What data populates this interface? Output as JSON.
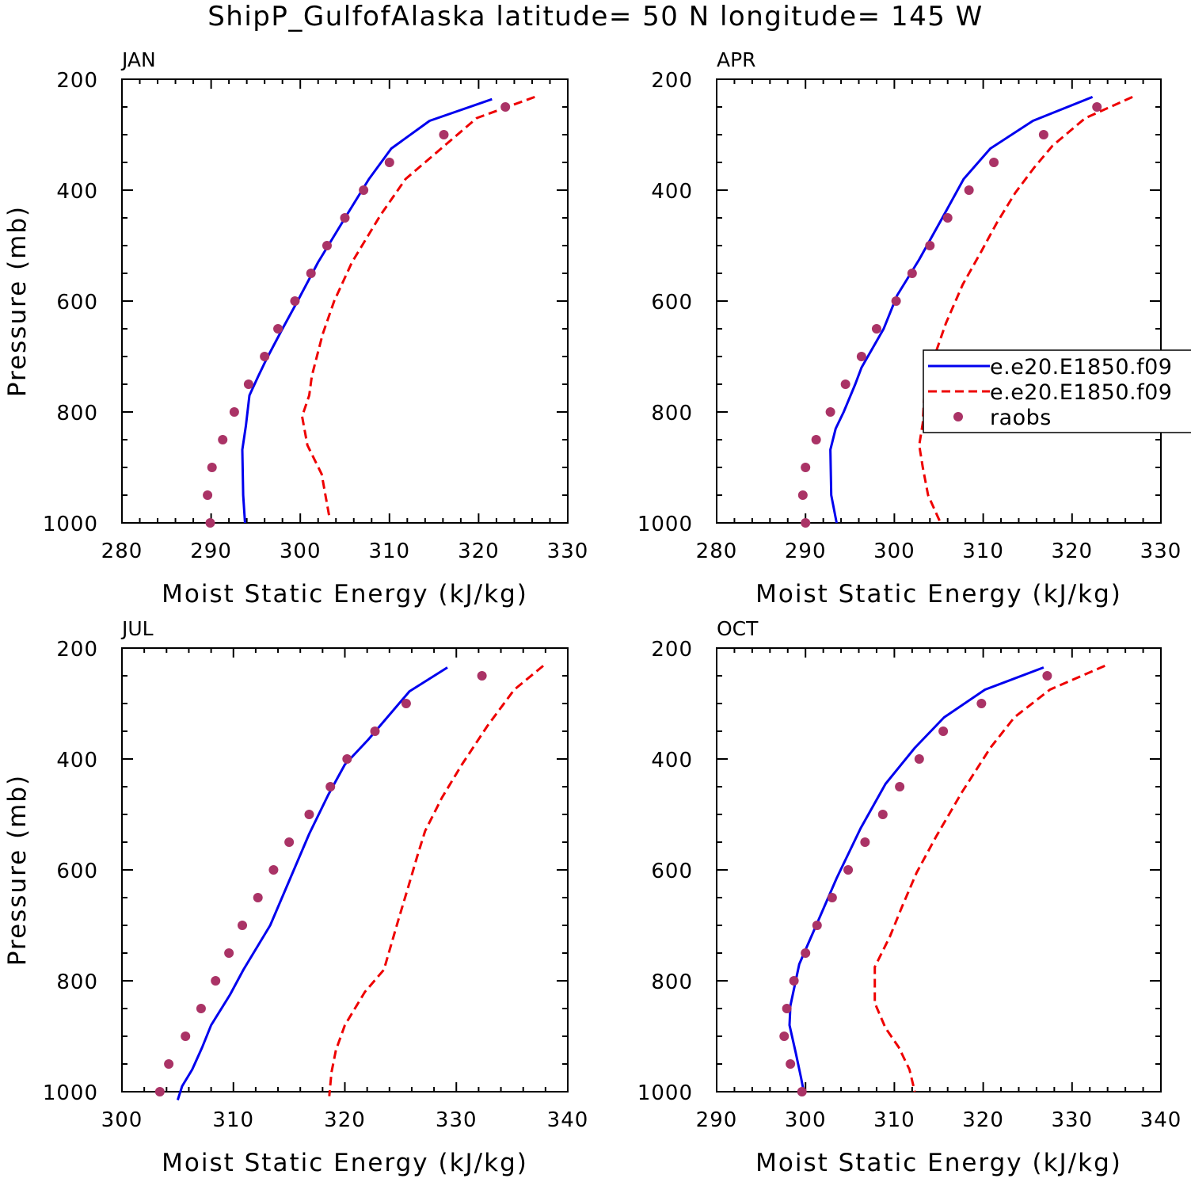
{
  "title": "ShipP_GulfofAlaska  latitude= 50 N longitude= 145 W",
  "colors": {
    "model1": "#0000ee",
    "model2": "#ee0000",
    "raobs": "#aa3366"
  },
  "legend": {
    "items": [
      {
        "label": "e.e20.E1850.f09",
        "style": "solid",
        "color": "#0000ee"
      },
      {
        "label": "e.e20.E1850.f09",
        "style": "dashed",
        "color": "#ee0000"
      },
      {
        "label": "raobs",
        "style": "marker",
        "color": "#aa3366"
      }
    ],
    "placement": "right, attached to APR panel, clipped by page edge"
  },
  "chart_data": [
    {
      "type": "line",
      "panel": "JAN",
      "xlabel": "Moist Static Energy (kJ/kg)",
      "ylabel": "Pressure (mb)",
      "xlim": [
        280,
        330
      ],
      "ylim": [
        1000,
        200
      ],
      "xticks": [
        280,
        290,
        300,
        310,
        320,
        330
      ],
      "yticks": [
        200,
        400,
        600,
        800,
        1000
      ],
      "yscale": "linear",
      "series": [
        {
          "name": "e.e20.E1850.f09",
          "style": "solid",
          "color": "#0000ee",
          "points": [
            [
              321.5,
              236
            ],
            [
              314.5,
              275
            ],
            [
              310.2,
              325
            ],
            [
              307.7,
              380
            ],
            [
              305.4,
              440
            ],
            [
              302.0,
              530
            ],
            [
              299.7,
              600
            ],
            [
              298.0,
              650
            ],
            [
              296.2,
              705
            ],
            [
              295.3,
              735
            ],
            [
              294.3,
              770
            ],
            [
              293.9,
              825
            ],
            [
              293.5,
              868
            ],
            [
              293.6,
              950
            ],
            [
              293.8,
              1000
            ]
          ]
        },
        {
          "name": "e.e20.E1850.f09",
          "style": "dashed",
          "color": "#ee0000",
          "points": [
            [
              326.3,
              232
            ],
            [
              319.8,
              270
            ],
            [
              315.8,
              325
            ],
            [
              311.8,
              380
            ],
            [
              309.0,
              445
            ],
            [
              305.8,
              530
            ],
            [
              303.8,
              600
            ],
            [
              302.5,
              660
            ],
            [
              301.3,
              735
            ],
            [
              301.0,
              770
            ],
            [
              300.2,
              808
            ],
            [
              300.8,
              860
            ],
            [
              302.4,
              912
            ],
            [
              302.8,
              948
            ],
            [
              303.3,
              993
            ]
          ]
        },
        {
          "name": "raobs",
          "style": "marker",
          "color": "#aa3366",
          "points": [
            [
              323.0,
              250
            ],
            [
              316.1,
              300
            ],
            [
              310.0,
              350
            ],
            [
              307.1,
              400
            ],
            [
              305.0,
              450
            ],
            [
              303.0,
              500
            ],
            [
              301.2,
              550
            ],
            [
              299.4,
              600
            ],
            [
              297.5,
              650
            ],
            [
              296.0,
              700
            ],
            [
              294.2,
              750
            ],
            [
              292.6,
              800
            ],
            [
              291.3,
              850
            ],
            [
              290.1,
              900
            ],
            [
              289.6,
              950
            ],
            [
              289.9,
              1000
            ]
          ]
        }
      ]
    },
    {
      "type": "line",
      "panel": "APR",
      "xlabel": "Moist Static Energy (kJ/kg)",
      "ylabel": "",
      "xlim": [
        280,
        330
      ],
      "ylim": [
        1000,
        200
      ],
      "xticks": [
        280,
        290,
        300,
        310,
        320,
        330
      ],
      "yticks": [
        200,
        400,
        600,
        800,
        1000
      ],
      "yscale": "linear",
      "series": [
        {
          "name": "e.e20.E1850.f09",
          "style": "solid",
          "color": "#0000ee",
          "points": [
            [
              322.3,
              232
            ],
            [
              315.6,
              275
            ],
            [
              310.8,
              325
            ],
            [
              307.8,
              380
            ],
            [
              305.4,
              450
            ],
            [
              302.8,
              525
            ],
            [
              300.3,
              590
            ],
            [
              298.8,
              650
            ],
            [
              296.3,
              720
            ],
            [
              295.6,
              750
            ],
            [
              294.3,
              800
            ],
            [
              293.4,
              830
            ],
            [
              292.8,
              868
            ],
            [
              292.9,
              950
            ],
            [
              293.5,
              1000
            ]
          ]
        },
        {
          "name": "e.e20.E1850.f09",
          "style": "dashed",
          "color": "#ee0000",
          "points": [
            [
              326.8,
              232
            ],
            [
              321.5,
              270
            ],
            [
              317.8,
              320
            ],
            [
              315.7,
              360
            ],
            [
              313.6,
              405
            ],
            [
              311.5,
              460
            ],
            [
              309.8,
              510
            ],
            [
              307.7,
              570
            ],
            [
              305.8,
              640
            ],
            [
              304.5,
              700
            ],
            [
              303.4,
              760
            ],
            [
              303.2,
              820
            ],
            [
              302.8,
              860
            ],
            [
              303.2,
              900
            ],
            [
              303.8,
              950
            ],
            [
              305.2,
              1000
            ]
          ]
        },
        {
          "name": "raobs",
          "style": "marker",
          "color": "#aa3366",
          "points": [
            [
              322.8,
              250
            ],
            [
              316.8,
              300
            ],
            [
              311.2,
              350
            ],
            [
              308.4,
              400
            ],
            [
              306.0,
              450
            ],
            [
              304.0,
              500
            ],
            [
              302.0,
              550
            ],
            [
              300.2,
              600
            ],
            [
              298.0,
              650
            ],
            [
              296.3,
              700
            ],
            [
              294.5,
              750
            ],
            [
              292.8,
              800
            ],
            [
              291.2,
              850
            ],
            [
              290.0,
              900
            ],
            [
              289.7,
              950
            ],
            [
              290.0,
              1000
            ]
          ]
        }
      ]
    },
    {
      "type": "line",
      "panel": "JUL",
      "xlabel": "Moist Static Energy (kJ/kg)",
      "ylabel": "Pressure (mb)",
      "xlim": [
        300,
        340
      ],
      "ylim": [
        1000,
        200
      ],
      "xticks": [
        300,
        310,
        320,
        330,
        340
      ],
      "yticks": [
        200,
        400,
        600,
        800,
        1000
      ],
      "yscale": "linear",
      "series": [
        {
          "name": "e.e20.E1850.f09",
          "style": "solid",
          "color": "#0000ee",
          "points": [
            [
              329.2,
              235
            ],
            [
              325.8,
              278
            ],
            [
              323.8,
              325
            ],
            [
              322.1,
              365
            ],
            [
              320.0,
              410
            ],
            [
              318.5,
              465
            ],
            [
              316.8,
              535
            ],
            [
              315.0,
              620
            ],
            [
              313.3,
              700
            ],
            [
              310.9,
              780
            ],
            [
              309.7,
              825
            ],
            [
              308.0,
              880
            ],
            [
              307.2,
              920
            ],
            [
              306.3,
              960
            ],
            [
              305.4,
              990
            ],
            [
              305.0,
              1015
            ]
          ]
        },
        {
          "name": "e.e20.E1850.f09",
          "style": "dashed",
          "color": "#ee0000",
          "points": [
            [
              337.8,
              232
            ],
            [
              335.2,
              275
            ],
            [
              332.8,
              340
            ],
            [
              330.5,
              410
            ],
            [
              328.7,
              470
            ],
            [
              327.2,
              530
            ],
            [
              326.5,
              575
            ],
            [
              325.7,
              630
            ],
            [
              324.8,
              690
            ],
            [
              323.5,
              780
            ],
            [
              321.8,
              820
            ],
            [
              320.0,
              880
            ],
            [
              319.2,
              925
            ],
            [
              318.8,
              965
            ],
            [
              318.6,
              1008
            ]
          ]
        },
        {
          "name": "raobs",
          "style": "marker",
          "color": "#aa3366",
          "points": [
            [
              332.3,
              250
            ],
            [
              325.5,
              300
            ],
            [
              322.7,
              350
            ],
            [
              320.2,
              400
            ],
            [
              318.7,
              450
            ],
            [
              316.8,
              500
            ],
            [
              315.0,
              550
            ],
            [
              313.6,
              600
            ],
            [
              312.2,
              650
            ],
            [
              310.8,
              700
            ],
            [
              309.6,
              750
            ],
            [
              308.4,
              800
            ],
            [
              307.1,
              850
            ],
            [
              305.7,
              900
            ],
            [
              304.2,
              950
            ],
            [
              303.4,
              1000
            ]
          ]
        }
      ]
    },
    {
      "type": "line",
      "panel": "OCT",
      "xlabel": "Moist Static Energy (kJ/kg)",
      "ylabel": "",
      "xlim": [
        290,
        340
      ],
      "ylim": [
        1000,
        200
      ],
      "xticks": [
        290,
        300,
        310,
        320,
        330,
        340
      ],
      "yticks": [
        200,
        400,
        600,
        800,
        1000
      ],
      "yscale": "linear",
      "series": [
        {
          "name": "e.e20.E1850.f09",
          "style": "solid",
          "color": "#0000ee",
          "points": [
            [
              326.8,
              235
            ],
            [
              320.2,
              275
            ],
            [
              315.6,
              325
            ],
            [
              312.3,
              380
            ],
            [
              309.0,
              445
            ],
            [
              306.2,
              525
            ],
            [
              303.5,
              615
            ],
            [
              301.2,
              700
            ],
            [
              299.3,
              770
            ],
            [
              298.3,
              845
            ],
            [
              298.2,
              880
            ],
            [
              298.9,
              930
            ],
            [
              299.5,
              975
            ],
            [
              299.8,
              1000
            ]
          ]
        },
        {
          "name": "e.e20.E1850.f09",
          "style": "dashed",
          "color": "#ee0000",
          "points": [
            [
              333.7,
              232
            ],
            [
              327.5,
              275
            ],
            [
              323.5,
              325
            ],
            [
              320.8,
              380
            ],
            [
              317.6,
              460
            ],
            [
              314.7,
              540
            ],
            [
              312.5,
              605
            ],
            [
              310.9,
              665
            ],
            [
              309.5,
              720
            ],
            [
              307.8,
              775
            ],
            [
              307.8,
              840
            ],
            [
              309.0,
              885
            ],
            [
              310.5,
              920
            ],
            [
              311.7,
              960
            ],
            [
              312.3,
              1000
            ]
          ]
        },
        {
          "name": "raobs",
          "style": "marker",
          "color": "#aa3366",
          "points": [
            [
              327.2,
              250
            ],
            [
              319.8,
              300
            ],
            [
              315.5,
              350
            ],
            [
              312.8,
              400
            ],
            [
              310.6,
              450
            ],
            [
              308.7,
              500
            ],
            [
              306.7,
              550
            ],
            [
              304.8,
              600
            ],
            [
              303.0,
              650
            ],
            [
              301.3,
              700
            ],
            [
              300.0,
              750
            ],
            [
              298.7,
              800
            ],
            [
              297.9,
              850
            ],
            [
              297.6,
              900
            ],
            [
              298.3,
              950
            ],
            [
              299.6,
              1000
            ]
          ]
        }
      ]
    }
  ]
}
